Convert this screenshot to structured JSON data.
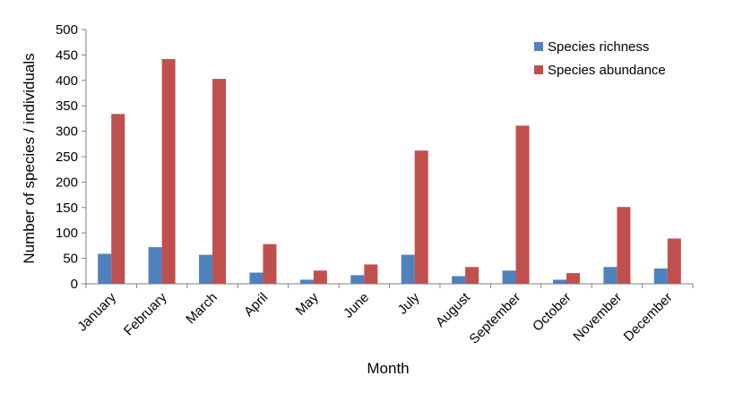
{
  "chart_data": {
    "type": "bar",
    "title": "",
    "xlabel": "Month",
    "ylabel": "Number of species / individuals",
    "ylim": [
      0,
      500
    ],
    "yticks": [
      0,
      50,
      100,
      150,
      200,
      250,
      300,
      350,
      400,
      450,
      500
    ],
    "categories": [
      "January",
      "February",
      "March",
      "April",
      "May",
      "June",
      "July",
      "August",
      "September",
      "October",
      "November",
      "December"
    ],
    "series": [
      {
        "name": "Species richness",
        "color": "#4f81bd",
        "values": [
          59,
          72,
          57,
          22,
          8,
          17,
          57,
          15,
          26,
          8,
          33,
          30
        ]
      },
      {
        "name": "Species abundance",
        "color": "#c0504d",
        "values": [
          334,
          442,
          403,
          78,
          26,
          38,
          262,
          33,
          311,
          21,
          151,
          89
        ]
      }
    ],
    "legend_position": "top-right",
    "grid": false
  }
}
